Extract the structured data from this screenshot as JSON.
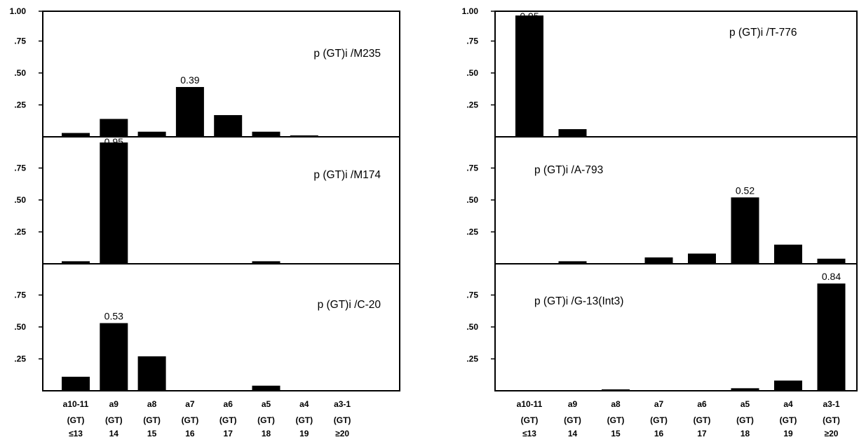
{
  "chart_data": [
    {
      "type": "bar",
      "title": "p (GT)i /M235",
      "categories": [
        "a10-11 (GT) ≤13",
        "a9 (GT) 14",
        "a8 (GT) 15",
        "a7 (GT) 16",
        "a6 (GT) 17",
        "a5 (GT) 18",
        "a4 (GT) 19",
        "a3-1 (GT) ≥20"
      ],
      "values": [
        0.03,
        0.14,
        0.04,
        0.39,
        0.17,
        0.04,
        0.01,
        0.0
      ],
      "data_labels": [
        "",
        "",
        "",
        "0.39",
        "",
        "",
        "",
        ""
      ],
      "y_ticks": [
        "1.00",
        ".75",
        ".50",
        ".25"
      ],
      "ylim": [
        0,
        1.0
      ]
    },
    {
      "type": "bar",
      "title": "p (GT)i /M174",
      "categories": [
        "a10-11 (GT) ≤13",
        "a9 (GT) 14",
        "a8 (GT) 15",
        "a7 (GT) 16",
        "a6 (GT) 17",
        "a5 (GT) 18",
        "a4 (GT) 19",
        "a3-1 (GT) ≥20"
      ],
      "values": [
        0.02,
        0.95,
        0.0,
        0.0,
        0.0,
        0.02,
        0.0,
        0.0
      ],
      "data_labels": [
        "",
        "0.95",
        "",
        "",
        "",
        "",
        "",
        ""
      ],
      "y_ticks": [
        ".75",
        ".50",
        ".25"
      ],
      "ylim": [
        0,
        1.0
      ]
    },
    {
      "type": "bar",
      "title": "p (GT)i /C-20",
      "categories": [
        "a10-11 (GT) ≤13",
        "a9 (GT) 14",
        "a8 (GT) 15",
        "a7 (GT) 16",
        "a6 (GT) 17",
        "a5 (GT) 18",
        "a4 (GT) 19",
        "a3-1 (GT) ≥20"
      ],
      "values": [
        0.11,
        0.53,
        0.27,
        0.0,
        0.0,
        0.04,
        0.0,
        0.0
      ],
      "data_labels": [
        "",
        "0.53",
        "",
        "",
        "",
        "",
        "",
        ""
      ],
      "y_ticks": [
        ".75",
        ".50",
        ".25"
      ],
      "ylim": [
        0,
        1.0
      ]
    },
    {
      "type": "bar",
      "title": "p (GT)i /T-776",
      "categories": [
        "a10-11 (GT) ≤13",
        "a9 (GT) 14",
        "a8 (GT) 15",
        "a7 (GT) 16",
        "a6 (GT) 17",
        "a5 (GT) 18",
        "a4 (GT) 19",
        "a3-1 (GT) ≥20"
      ],
      "values": [
        0.95,
        0.06,
        0.0,
        0.0,
        0.0,
        0.0,
        0.0,
        0.0
      ],
      "data_labels": [
        "0.95",
        "",
        "",
        "",
        "",
        "",
        "",
        ""
      ],
      "y_ticks": [
        "1.00",
        ".75",
        ".50",
        ".25"
      ],
      "ylim": [
        0,
        1.0
      ]
    },
    {
      "type": "bar",
      "title": "p (GT)i /A-793",
      "categories": [
        "a10-11 (GT) ≤13",
        "a9 (GT) 14",
        "a8 (GT) 15",
        "a7 (GT) 16",
        "a6 (GT) 17",
        "a5 (GT) 18",
        "a4 (GT) 19",
        "a3-1 (GT) ≥20"
      ],
      "values": [
        0.0,
        0.02,
        0.0,
        0.05,
        0.08,
        0.52,
        0.15,
        0.04
      ],
      "data_labels": [
        "",
        "",
        "",
        "",
        "",
        "0.52",
        "",
        ""
      ],
      "y_ticks": [
        ".75",
        ".50",
        ".25"
      ],
      "ylim": [
        0,
        1.0
      ]
    },
    {
      "type": "bar",
      "title": "p (GT)i /G-13(Int3)",
      "categories": [
        "a10-11 (GT) ≤13",
        "a9 (GT) 14",
        "a8 (GT) 15",
        "a7 (GT) 16",
        "a6 (GT) 17",
        "a5 (GT) 18",
        "a4 (GT) 19",
        "a3-1 (GT) ≥20"
      ],
      "values": [
        0.0,
        0.0,
        0.005,
        0.0,
        0.0,
        0.02,
        0.08,
        0.84
      ],
      "data_labels": [
        "",
        "",
        "",
        "",
        "",
        "",
        "",
        "0.84"
      ],
      "y_ticks": [
        ".75",
        ".50",
        ".25"
      ],
      "ylim": [
        0,
        1.0
      ]
    }
  ],
  "x_axis_labels": {
    "allele": [
      "a10-11",
      "a9",
      "a8",
      "a7",
      "a6",
      "a5",
      "a4",
      "a3-1"
    ],
    "motif": [
      "(GT)",
      "(GT)",
      "(GT)",
      "(GT)",
      "(GT)",
      "(GT)",
      "(GT)",
      "(GT)"
    ],
    "repeats": [
      "≤13",
      "14",
      "15",
      "16",
      "17",
      "18",
      "19",
      "≥20"
    ]
  }
}
